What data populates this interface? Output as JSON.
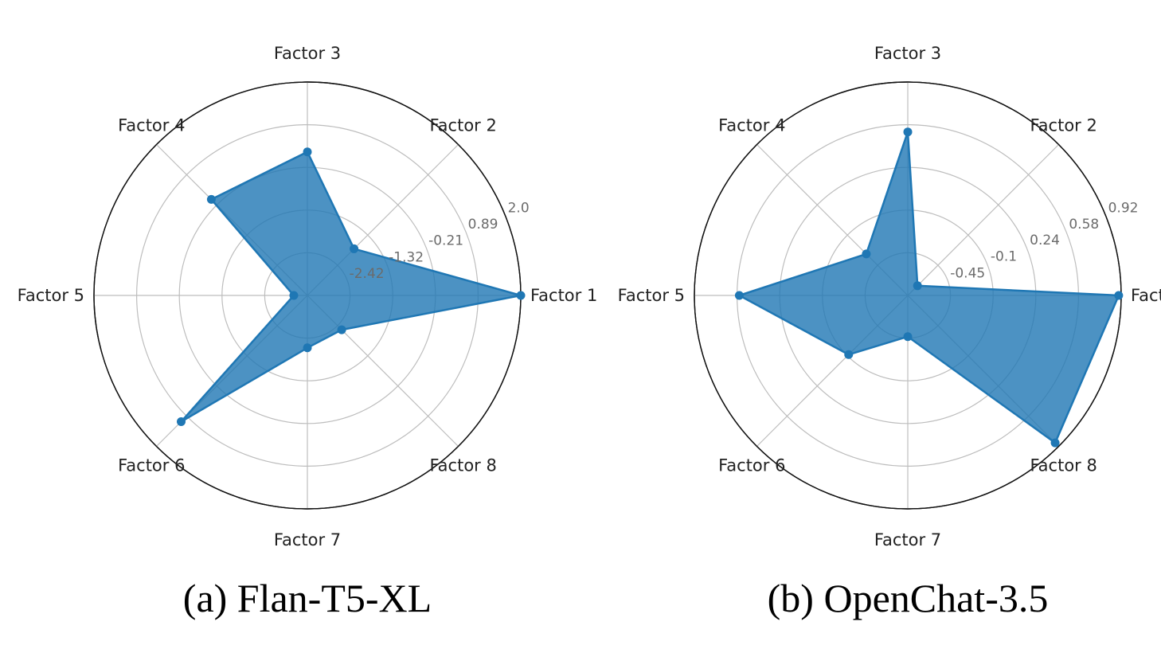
{
  "chart_data": [
    {
      "type": "radar",
      "title": "(a) Flan-T5-XL",
      "axes": [
        "Factor 1",
        "Factor 2",
        "Factor 3",
        "Factor 4",
        "Factor 5",
        "Factor 6",
        "Factor 7",
        "Factor 8"
      ],
      "rlim": [
        -3.5,
        2.0
      ],
      "rticks": [
        -2.42,
        -1.32,
        -0.21,
        0.89,
        2.0
      ],
      "rtick_labels": [
        "-2.42",
        "-1.32",
        "-0.21",
        "0.89",
        "2.0"
      ],
      "grid": true,
      "series": [
        {
          "values": [
            2.0,
            -1.8,
            0.2,
            0.0,
            -3.15,
            1.1,
            -2.15,
            -2.25
          ],
          "color": "#1f77b4"
        }
      ]
    },
    {
      "type": "radar",
      "title": "(b) OpenChat-3.5",
      "axes": [
        "Factor",
        "Factor 2",
        "Factor 3",
        "Factor 4",
        "Factor 5",
        "Factor 6",
        "Factor 7",
        "Factor 8"
      ],
      "rlim": [
        -0.79,
        0.92
      ],
      "rticks": [
        -0.45,
        -0.1,
        0.24,
        0.58,
        0.92
      ],
      "rtick_labels": [
        "-0.45",
        "-0.1",
        "0.24",
        "0.58",
        "0.92"
      ],
      "grid": true,
      "series": [
        {
          "values": [
            0.9,
            -0.68,
            0.52,
            -0.32,
            0.56,
            -0.12,
            -0.46,
            0.88
          ],
          "color": "#1f77b4"
        }
      ]
    }
  ]
}
